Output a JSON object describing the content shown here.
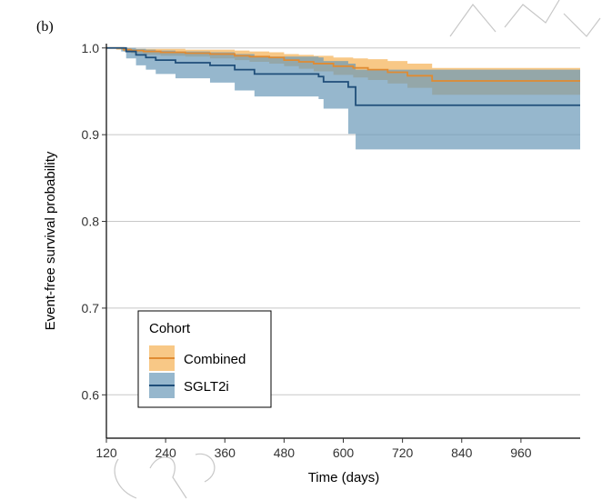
{
  "chart_data": {
    "type": "line",
    "panel_label": "(b)",
    "xlabel": "Time (days)",
    "ylabel": "Event-free survival probability",
    "xlim": [
      120,
      1080
    ],
    "ylim": [
      0.55,
      1.005
    ],
    "x_ticks": [
      120,
      240,
      360,
      480,
      600,
      720,
      840,
      960
    ],
    "y_ticks": [
      0.6,
      0.7,
      0.8,
      0.9,
      1.0
    ],
    "y_tick_labels": [
      "0.6",
      "0.7",
      "0.8",
      "0.9",
      "1.0"
    ],
    "grid": true,
    "legend": {
      "title": "Cohort",
      "placement": "bottom-left"
    },
    "series": [
      {
        "name": "Combined",
        "line_color": "#E08B32",
        "band_color": "#F5B55E",
        "points": [
          [
            120,
            1.0
          ],
          [
            140,
            1.0
          ],
          [
            155,
            0.998
          ],
          [
            170,
            0.997
          ],
          [
            195,
            0.996
          ],
          [
            230,
            0.995
          ],
          [
            280,
            0.994
          ],
          [
            330,
            0.993
          ],
          [
            380,
            0.991
          ],
          [
            410,
            0.99
          ],
          [
            450,
            0.989
          ],
          [
            480,
            0.986
          ],
          [
            510,
            0.984
          ],
          [
            540,
            0.982
          ],
          [
            580,
            0.979
          ],
          [
            620,
            0.977
          ],
          [
            650,
            0.975
          ],
          [
            690,
            0.972
          ],
          [
            730,
            0.968
          ],
          [
            780,
            0.962
          ],
          [
            1080,
            0.962
          ]
        ],
        "lower": [
          [
            120,
            1.0
          ],
          [
            140,
            0.998
          ],
          [
            155,
            0.996
          ],
          [
            170,
            0.994
          ],
          [
            195,
            0.992
          ],
          [
            230,
            0.991
          ],
          [
            280,
            0.99
          ],
          [
            330,
            0.988
          ],
          [
            380,
            0.986
          ],
          [
            410,
            0.984
          ],
          [
            450,
            0.982
          ],
          [
            480,
            0.979
          ],
          [
            510,
            0.976
          ],
          [
            540,
            0.973
          ],
          [
            580,
            0.969
          ],
          [
            620,
            0.966
          ],
          [
            650,
            0.963
          ],
          [
            690,
            0.959
          ],
          [
            730,
            0.954
          ],
          [
            780,
            0.946
          ],
          [
            1080,
            0.946
          ]
        ],
        "upper": [
          [
            120,
            1.0
          ],
          [
            140,
            1.0
          ],
          [
            155,
            1.0
          ],
          [
            170,
            0.999
          ],
          [
            195,
            0.999
          ],
          [
            230,
            0.999
          ],
          [
            280,
            0.998
          ],
          [
            330,
            0.998
          ],
          [
            380,
            0.997
          ],
          [
            410,
            0.996
          ],
          [
            450,
            0.995
          ],
          [
            480,
            0.993
          ],
          [
            510,
            0.992
          ],
          [
            540,
            0.991
          ],
          [
            580,
            0.989
          ],
          [
            620,
            0.988
          ],
          [
            650,
            0.987
          ],
          [
            690,
            0.985
          ],
          [
            730,
            0.982
          ],
          [
            780,
            0.977
          ],
          [
            1080,
            0.977
          ]
        ]
      },
      {
        "name": "SGLT2i",
        "line_color": "#1F4E79",
        "band_color": "#6A98B8",
        "points": [
          [
            120,
            1.0
          ],
          [
            150,
            1.0
          ],
          [
            160,
            0.996
          ],
          [
            180,
            0.992
          ],
          [
            200,
            0.989
          ],
          [
            220,
            0.986
          ],
          [
            260,
            0.983
          ],
          [
            330,
            0.98
          ],
          [
            380,
            0.975
          ],
          [
            420,
            0.97
          ],
          [
            550,
            0.967
          ],
          [
            560,
            0.961
          ],
          [
            610,
            0.955
          ],
          [
            625,
            0.934
          ],
          [
            1080,
            0.934
          ]
        ],
        "lower": [
          [
            120,
            1.0
          ],
          [
            150,
            0.996
          ],
          [
            160,
            0.988
          ],
          [
            180,
            0.98
          ],
          [
            200,
            0.975
          ],
          [
            220,
            0.97
          ],
          [
            260,
            0.965
          ],
          [
            330,
            0.96
          ],
          [
            380,
            0.951
          ],
          [
            420,
            0.944
          ],
          [
            550,
            0.941
          ],
          [
            560,
            0.93
          ],
          [
            610,
            0.901
          ],
          [
            625,
            0.883
          ],
          [
            1080,
            0.883
          ]
        ],
        "upper": [
          [
            120,
            1.0
          ],
          [
            150,
            1.0
          ],
          [
            160,
            1.0
          ],
          [
            180,
            0.999
          ],
          [
            200,
            0.998
          ],
          [
            220,
            0.997
          ],
          [
            260,
            0.996
          ],
          [
            330,
            0.995
          ],
          [
            380,
            0.993
          ],
          [
            420,
            0.99
          ],
          [
            550,
            0.989
          ],
          [
            560,
            0.985
          ],
          [
            610,
            0.982
          ],
          [
            625,
            0.975
          ],
          [
            1080,
            0.975
          ]
        ]
      }
    ]
  },
  "watermark": {
    "color": "#b0b0b0"
  }
}
